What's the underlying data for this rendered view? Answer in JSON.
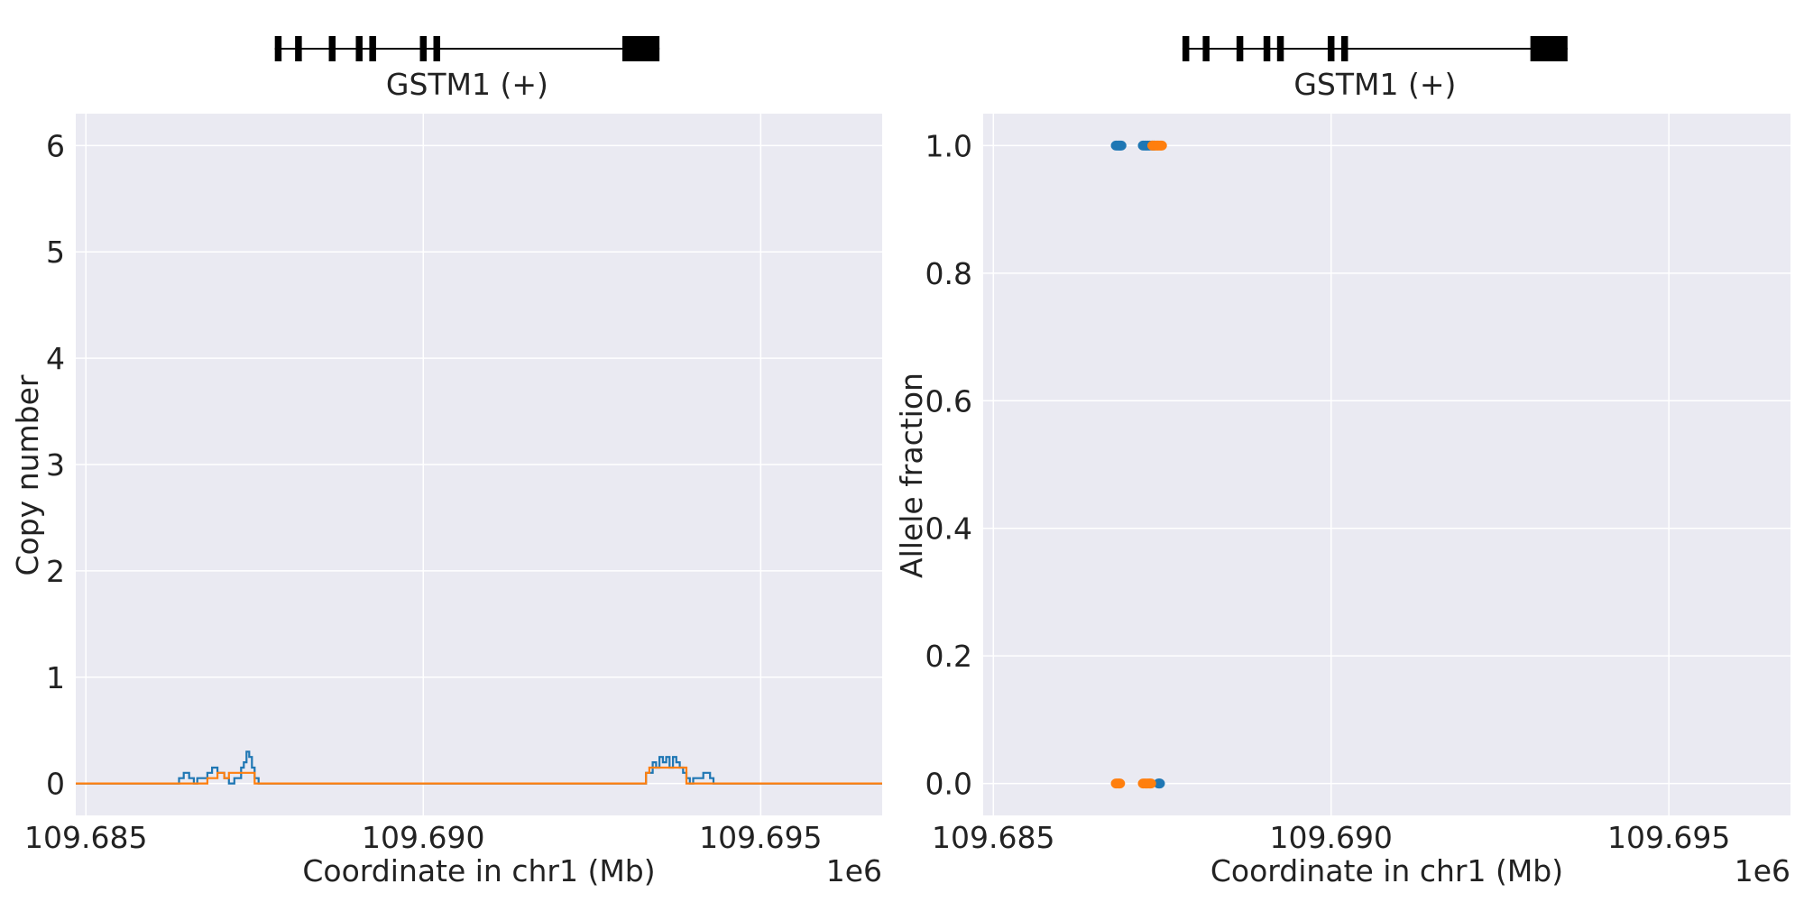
{
  "chart_data": [
    {
      "type": "line",
      "gene": {
        "label": "GSTM1 (+)",
        "span": [
          109687800,
          109693500
        ],
        "exons": [
          [
            109687800,
            109687900
          ],
          [
            109688100,
            109688200
          ],
          [
            109688600,
            109688700
          ],
          [
            109689000,
            109689100
          ],
          [
            109689200,
            109689300
          ],
          [
            109689950,
            109690050
          ],
          [
            109690150,
            109690250
          ],
          [
            109692950,
            109693500
          ]
        ]
      },
      "xlabel": "Coordinate in chr1 (Mb)",
      "ylabel": "Copy number",
      "offset_label": "1e6",
      "xlim": [
        109684850,
        109696800
      ],
      "ylim": [
        -0.3,
        6.3
      ],
      "xticks": [
        109685000,
        109690000,
        109695000
      ],
      "xtick_labels": [
        "109.685",
        "109.690",
        "109.695"
      ],
      "yticks": [
        0,
        1,
        2,
        3,
        4,
        5,
        6
      ],
      "ytick_labels": [
        "0",
        "1",
        "2",
        "3",
        "4",
        "5",
        "6"
      ],
      "grid": true,
      "series": [
        {
          "color": "#1f77b4",
          "x": [
            109684850,
            109686380,
            109686380,
            109686450,
            109686450,
            109686530,
            109686530,
            109686600,
            109686600,
            109686650,
            109686650,
            109686800,
            109686800,
            109686870,
            109686870,
            109686950,
            109686950,
            109687050,
            109687050,
            109687120,
            109687120,
            109687200,
            109687200,
            109687300,
            109687300,
            109687340,
            109687340,
            109687380,
            109687380,
            109687420,
            109687420,
            109687460,
            109687460,
            109687500,
            109687500,
            109687560,
            109687560,
            109693300,
            109693300,
            109693400,
            109693400,
            109693450,
            109693450,
            109693500,
            109693500,
            109693550,
            109693550,
            109693600,
            109693600,
            109693650,
            109693650,
            109693700,
            109693700,
            109693750,
            109693750,
            109693800,
            109693800,
            109693850,
            109693850,
            109693900,
            109693900,
            109693950,
            109693950,
            109694000,
            109694000,
            109694150,
            109694150,
            109694250,
            109694250,
            109694300,
            109694300,
            109696800
          ],
          "y": [
            0,
            0,
            0.05,
            0.05,
            0.1,
            0.1,
            0.05,
            0.05,
            0,
            0,
            0.05,
            0.05,
            0.1,
            0.1,
            0.15,
            0.15,
            0.1,
            0.1,
            0.05,
            0.05,
            0,
            0,
            0.05,
            0.05,
            0.15,
            0.15,
            0.2,
            0.2,
            0.3,
            0.3,
            0.25,
            0.25,
            0.15,
            0.15,
            0.05,
            0.05,
            0,
            0,
            0.1,
            0.1,
            0.2,
            0.2,
            0.15,
            0.15,
            0.25,
            0.25,
            0.2,
            0.2,
            0.25,
            0.25,
            0.15,
            0.15,
            0.25,
            0.25,
            0.2,
            0.2,
            0.15,
            0.15,
            0.1,
            0.1,
            0.05,
            0.05,
            0,
            0,
            0.05,
            0.05,
            0.1,
            0.1,
            0.05,
            0.05,
            0,
            0
          ]
        },
        {
          "color": "#ff7f0e",
          "x": [
            109684850,
            109686800,
            109686800,
            109686950,
            109686950,
            109687050,
            109687050,
            109687120,
            109687120,
            109687500,
            109687500,
            109693300,
            109693300,
            109693350,
            109693350,
            109693900,
            109693900,
            109696800
          ],
          "y": [
            0,
            0,
            0.05,
            0.05,
            0.1,
            0.1,
            0.05,
            0.05,
            0.1,
            0.1,
            0,
            0,
            0.1,
            0.1,
            0.15,
            0.15,
            0,
            0
          ]
        }
      ]
    },
    {
      "type": "scatter",
      "gene": {
        "label": "GSTM1 (+)",
        "span": [
          109687800,
          109693500
        ],
        "exons": [
          [
            109687800,
            109687900
          ],
          [
            109688100,
            109688200
          ],
          [
            109688600,
            109688700
          ],
          [
            109689000,
            109689100
          ],
          [
            109689200,
            109689300
          ],
          [
            109689950,
            109690050
          ],
          [
            109690150,
            109690250
          ],
          [
            109692950,
            109693500
          ]
        ]
      },
      "xlabel": "Coordinate in chr1 (Mb)",
      "ylabel": "Allele fraction",
      "offset_label": "1e6",
      "xlim": [
        109684850,
        109696800
      ],
      "ylim": [
        -0.05,
        1.05
      ],
      "xticks": [
        109685000,
        109690000,
        109695000
      ],
      "xtick_labels": [
        "109.685",
        "109.690",
        "109.695"
      ],
      "yticks": [
        0.0,
        0.2,
        0.4,
        0.6,
        0.8,
        1.0
      ],
      "ytick_labels": [
        "0.0",
        "0.2",
        "0.4",
        "0.6",
        "0.8",
        "1.0"
      ],
      "grid": true,
      "series": [
        {
          "color": "#1f77b4",
          "x": [
            109686820,
            109686850,
            109686870,
            109686890,
            109687220,
            109687250,
            109687280,
            109687310,
            109687350,
            109687380,
            109687450,
            109687460
          ],
          "y": [
            1,
            1,
            1,
            1,
            1,
            1,
            1,
            1,
            1,
            1,
            0,
            0
          ]
        },
        {
          "color": "#ff7f0e",
          "x": [
            109686820,
            109686850,
            109686870,
            109687220,
            109687250,
            109687280,
            109687310,
            109687330,
            109687360,
            109687390,
            109687420,
            109687440,
            109687470,
            109687490
          ],
          "y": [
            0,
            0,
            0,
            0,
            0,
            0,
            0,
            0,
            1,
            1,
            1,
            1,
            1,
            1
          ]
        }
      ]
    }
  ]
}
